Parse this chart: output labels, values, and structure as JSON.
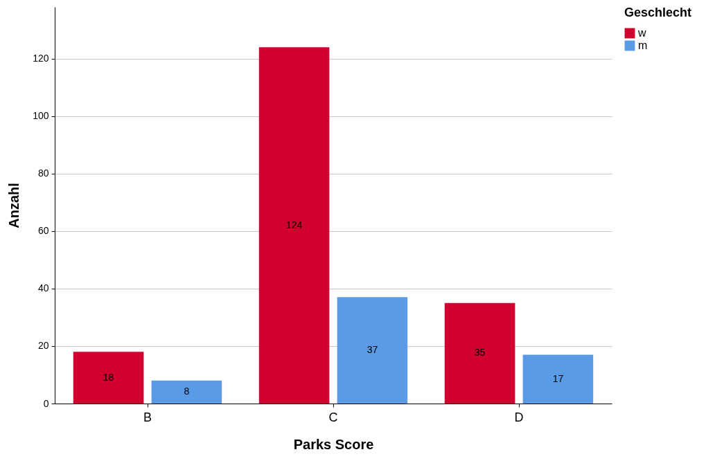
{
  "chart_data": {
    "type": "bar",
    "xlabel": "Parks Score",
    "ylabel": "Anzahl",
    "legend_title": "Geschlecht",
    "categories": [
      "B",
      "C",
      "D"
    ],
    "series": [
      {
        "name": "w",
        "color": "#d1002f",
        "values": [
          18,
          124,
          35
        ]
      },
      {
        "name": "m",
        "color": "#5b9be6",
        "values": [
          8,
          37,
          17
        ]
      }
    ],
    "ylim": [
      0,
      138
    ],
    "yticks": [
      0,
      20,
      40,
      60,
      80,
      100,
      120
    ],
    "grid": "y",
    "legend": "top right",
    "data_labels": true
  }
}
